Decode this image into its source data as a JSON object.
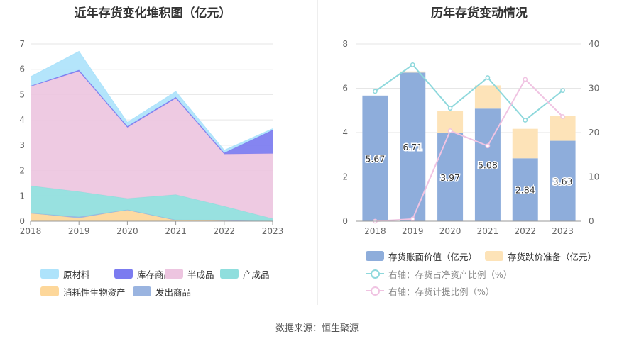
{
  "left": {
    "title": "近年存货变化堆积图（亿元）",
    "legend": [
      {
        "label": "原材料",
        "color": "#aee3fb"
      },
      {
        "label": "库存商品",
        "color": "#7b7bf0"
      },
      {
        "label": "半成品",
        "color": "#edc5e0"
      },
      {
        "label": "产成品",
        "color": "#8fdedd"
      },
      {
        "label": "消耗性生物资产",
        "color": "#fdd79a"
      },
      {
        "label": "发出商品",
        "color": "#9ab4e0"
      }
    ]
  },
  "right": {
    "title": "历年存货变动情况",
    "legend": [
      {
        "label": "存货账面价值（亿元）",
        "color": "#8eaddb"
      },
      {
        "label": "存货跌价准备（亿元）",
        "color": "#fde3b8"
      },
      {
        "label": "右轴：存货占净资产比例（%）",
        "color": "#8ed8dc"
      },
      {
        "label": "右轴：存货计提比例（%）",
        "color": "#f0c3e2"
      }
    ]
  },
  "source": "数据来源：恒生聚源",
  "chart_data": [
    {
      "type": "area",
      "stacked": true,
      "title": "近年存货变化堆积图（亿元）",
      "x": [
        "2018",
        "2019",
        "2020",
        "2021",
        "2022",
        "2023"
      ],
      "ylim": [
        0,
        7
      ],
      "yticks": [
        0,
        1,
        2,
        3,
        4,
        5,
        6,
        7
      ],
      "grid": true,
      "legend_position": "bottom",
      "series": [
        {
          "name": "消耗性生物资产",
          "color": "#fdd79a",
          "values": [
            0.32,
            0.12,
            0.45,
            0.05,
            0.02,
            0.0
          ]
        },
        {
          "name": "发出商品",
          "color": "#9ab4e0",
          "values": [
            0.0,
            0.05,
            0.0,
            0.0,
            0.02,
            0.0
          ]
        },
        {
          "name": "产成品",
          "color": "#8fdedd",
          "values": [
            1.08,
            1.0,
            0.45,
            1.0,
            0.55,
            0.1
          ]
        },
        {
          "name": "半成品",
          "color": "#edc5e0",
          "values": [
            3.92,
            4.75,
            2.8,
            3.8,
            2.06,
            2.57
          ]
        },
        {
          "name": "库存商品",
          "color": "#7b7bf0",
          "values": [
            0.02,
            0.05,
            0.05,
            0.05,
            0.05,
            0.93
          ]
        },
        {
          "name": "原材料",
          "color": "#aee3fb",
          "values": [
            0.36,
            0.73,
            0.15,
            0.22,
            0.1,
            0.05
          ]
        }
      ]
    },
    {
      "type": "bar",
      "stacked": true,
      "title": "历年存货变动情况",
      "categories": [
        "2018",
        "2019",
        "2020",
        "2021",
        "2022",
        "2023"
      ],
      "ylim": [
        0,
        8
      ],
      "yticks": [
        0,
        2,
        4,
        6,
        8
      ],
      "y2lim": [
        0,
        40
      ],
      "y2ticks": [
        0,
        10,
        20,
        30,
        40
      ],
      "grid": true,
      "legend_position": "bottom",
      "series": [
        {
          "name": "存货账面价值（亿元）",
          "axis": "left",
          "color": "#8eaddb",
          "values": [
            5.67,
            6.71,
            3.97,
            5.08,
            2.84,
            3.63
          ],
          "labels": [
            "5.67",
            "6.71",
            "3.97",
            "5.08",
            "2.84",
            "3.63"
          ]
        },
        {
          "name": "存货跌价准备（亿元）",
          "axis": "left",
          "color": "#fde3b8",
          "values": [
            0.0,
            0.05,
            1.02,
            1.05,
            1.33,
            1.11
          ]
        },
        {
          "name": "右轴：存货占净资产比例（%）",
          "axis": "right",
          "type": "line",
          "color": "#8ed8dc",
          "values": [
            29.3,
            35.3,
            25.5,
            32.4,
            22.8,
            29.5
          ]
        },
        {
          "name": "右轴：存货计提比例（%）",
          "axis": "right",
          "type": "line",
          "color": "#f0c3e2",
          "values": [
            0.0,
            0.5,
            20.4,
            17.0,
            32.0,
            23.6
          ]
        }
      ]
    }
  ]
}
